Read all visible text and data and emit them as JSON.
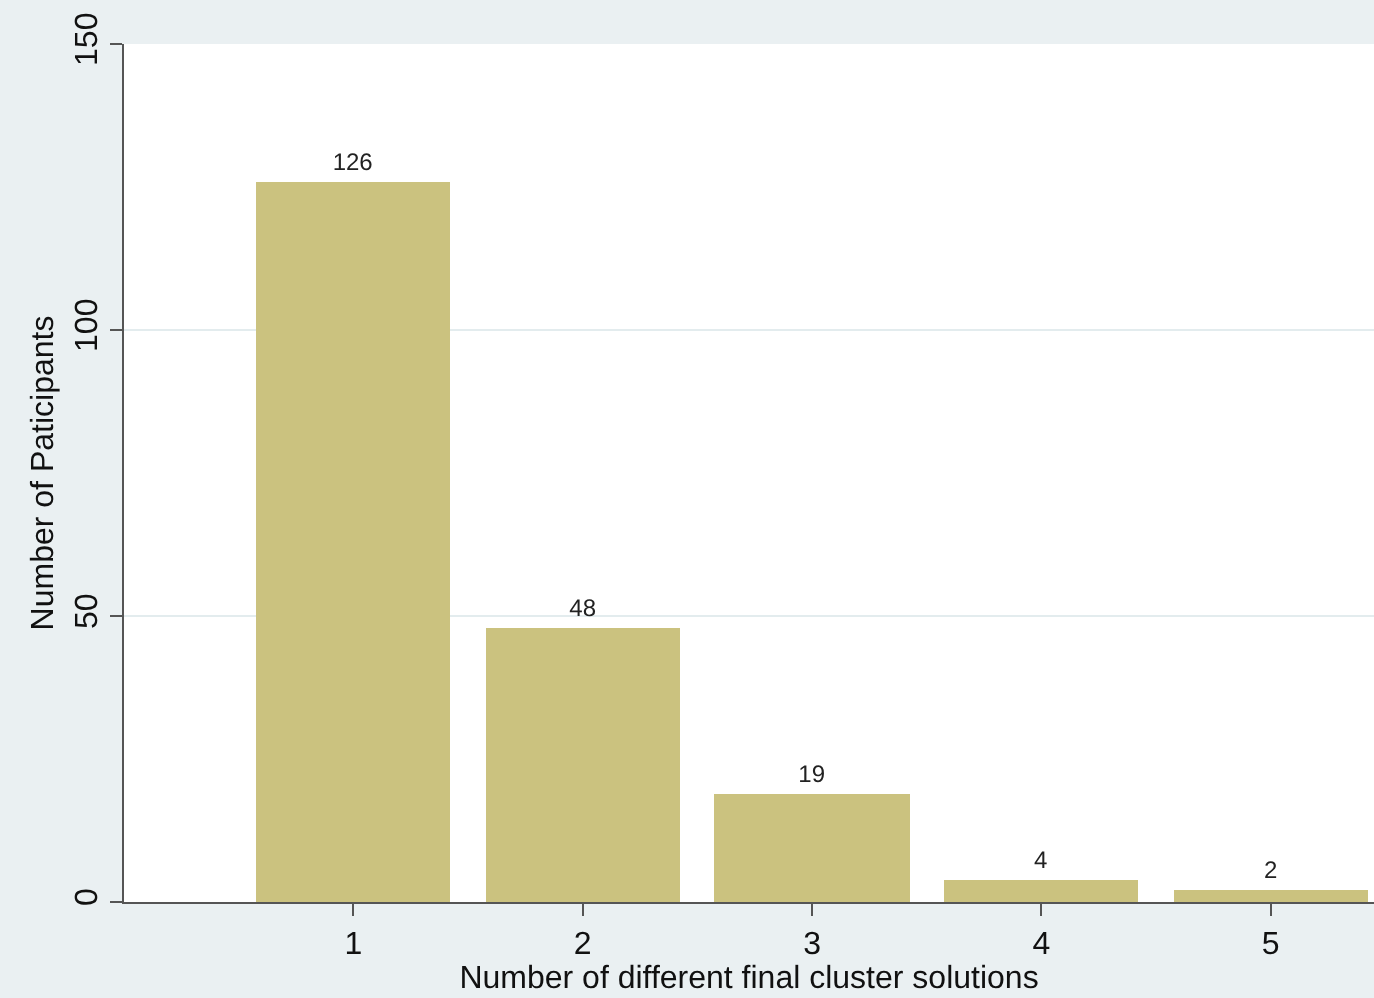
{
  "chart_data": {
    "type": "bar",
    "xlabel": "Number of different final cluster solutions",
    "ylabel": "Number of Paticipants",
    "x": [
      1,
      2,
      3,
      4,
      5
    ],
    "values": [
      126,
      48,
      19,
      4,
      2
    ],
    "color": "#cbc27f",
    "data_labels": true,
    "xlim": [
      0,
      5.45
    ],
    "xticks": [
      1,
      2,
      3,
      4,
      5
    ],
    "ylim": [
      0,
      150
    ],
    "yticks": [
      0,
      50,
      100,
      150
    ],
    "grid": "y",
    "legend": false
  }
}
